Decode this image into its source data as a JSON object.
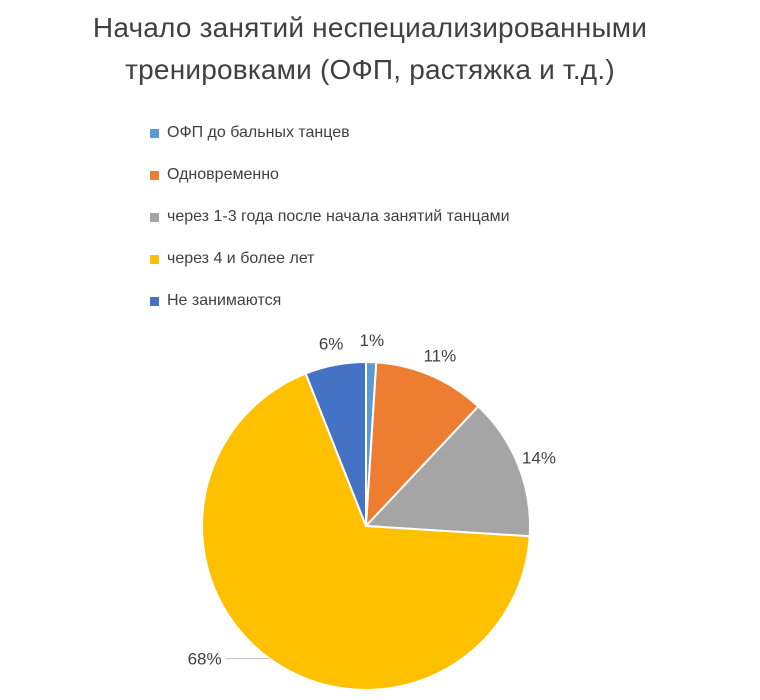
{
  "chart_data": {
    "type": "pie",
    "title_lines": [
      "Начало занятий неспециализированными",
      "тренировками (ОФП, растяжка и т.д.)"
    ],
    "legend_position": "top",
    "slices": [
      {
        "label": "ОФП до бальных танцев",
        "value": 1,
        "display": "1%",
        "color": "#5B9BD5"
      },
      {
        "label": "Одновременно",
        "value": 11,
        "display": "11%",
        "color": "#ED7D31"
      },
      {
        "label": "через 1-3 года после начала занятий танцами",
        "value": 14,
        "display": "14%",
        "color": "#A5A5A5"
      },
      {
        "label": "через 4 и более лет",
        "value": 68,
        "display": "68%",
        "color": "#FFC000"
      },
      {
        "label": "Не занимаются",
        "value": 6,
        "display": "6%",
        "color": "#4472C4"
      }
    ]
  }
}
